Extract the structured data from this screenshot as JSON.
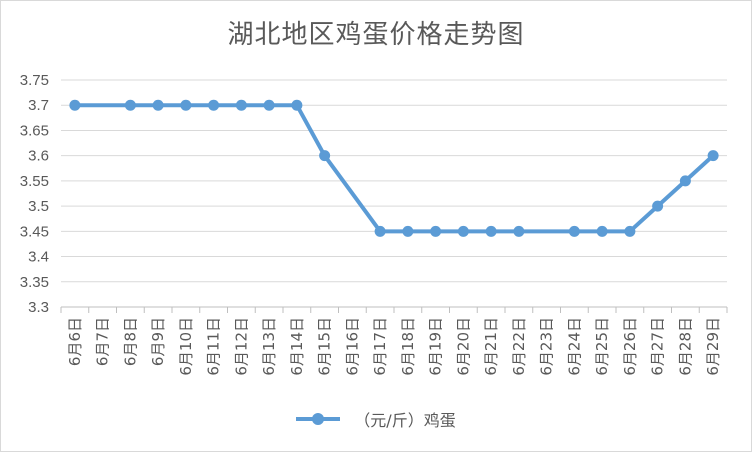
{
  "chart_data": {
    "type": "line",
    "title": "湖北地区鸡蛋价格走势图",
    "categories": [
      "6月6日",
      "6月7日",
      "6月8日",
      "6月9日",
      "6月10日",
      "6月11日",
      "6月12日",
      "6月13日",
      "6月14日",
      "6月15日",
      "6月16日",
      "6月17日",
      "6月18日",
      "6月19日",
      "6月20日",
      "6月21日",
      "6月22日",
      "6月23日",
      "6月24日",
      "6月25日",
      "6月26日",
      "6月27日",
      "6月28日",
      "6月29日"
    ],
    "series": [
      {
        "name": "（元/斤）鸡蛋",
        "values": [
          3.7,
          null,
          3.7,
          3.7,
          3.7,
          3.7,
          3.7,
          3.7,
          3.7,
          3.6,
          null,
          3.45,
          3.45,
          3.45,
          3.45,
          3.45,
          3.45,
          null,
          3.45,
          3.45,
          3.45,
          3.5,
          3.55,
          3.6
        ]
      }
    ],
    "yticks": [
      "3.3",
      "3.35",
      "3.4",
      "3.45",
      "3.5",
      "3.55",
      "3.6",
      "3.65",
      "3.7",
      "3.75"
    ],
    "ylim": [
      3.3,
      3.75
    ],
    "xlabel": "",
    "ylabel": "",
    "grid": true,
    "legend_position": "bottom",
    "line_color": "#5b9bd5"
  }
}
